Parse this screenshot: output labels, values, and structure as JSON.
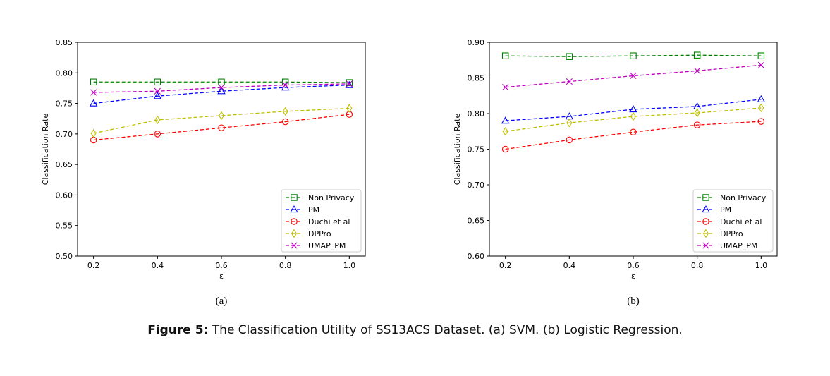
{
  "caption": {
    "label": "Figure 5:",
    "text": "The Classification Utility of SS13ACS Dataset. (a) SVM. (b) Logistic Regression."
  },
  "chart_data": [
    {
      "type": "line",
      "panel": "(a)",
      "xlabel": "ε",
      "ylabel": "Classification Rate",
      "x": [
        0.2,
        0.4,
        0.6,
        0.8,
        1.0
      ],
      "xticks": [
        "0.2",
        "0.4",
        "0.6",
        "0.8",
        "1.0"
      ],
      "ylim": [
        0.5,
        0.85
      ],
      "yticks": [
        "0.50",
        "0.55",
        "0.60",
        "0.65",
        "0.70",
        "0.75",
        "0.80",
        "0.85"
      ],
      "legend": "lower-right",
      "series": [
        {
          "name": "Non Privacy",
          "color": "#008000",
          "marker": "square",
          "values": [
            0.785,
            0.785,
            0.785,
            0.785,
            0.784
          ]
        },
        {
          "name": "PM",
          "color": "#0000ff",
          "marker": "triangle",
          "values": [
            0.75,
            0.762,
            0.77,
            0.776,
            0.78
          ]
        },
        {
          "name": "Duchi et al",
          "color": "#ff0000",
          "marker": "circle",
          "values": [
            0.69,
            0.7,
            0.71,
            0.72,
            0.732
          ]
        },
        {
          "name": "DPPro",
          "color": "#bfbf00",
          "marker": "diamond",
          "values": [
            0.701,
            0.723,
            0.73,
            0.737,
            0.742
          ]
        },
        {
          "name": "UMAP_PM",
          "color": "#bf00bf",
          "marker": "x",
          "values": [
            0.768,
            0.77,
            0.776,
            0.78,
            0.782
          ]
        }
      ]
    },
    {
      "type": "line",
      "panel": "(b)",
      "xlabel": "ε",
      "ylabel": "Classification Rate",
      "x": [
        0.2,
        0.4,
        0.6,
        0.8,
        1.0
      ],
      "xticks": [
        "0.2",
        "0.4",
        "0.6",
        "0.8",
        "1.0"
      ],
      "ylim": [
        0.6,
        0.9
      ],
      "yticks": [
        "0.60",
        "0.65",
        "0.70",
        "0.75",
        "0.80",
        "0.85",
        "0.90"
      ],
      "legend": "lower-right",
      "series": [
        {
          "name": "Non Privacy",
          "color": "#008000",
          "marker": "square",
          "values": [
            0.881,
            0.88,
            0.881,
            0.882,
            0.881
          ]
        },
        {
          "name": "PM",
          "color": "#0000ff",
          "marker": "triangle",
          "values": [
            0.79,
            0.796,
            0.806,
            0.81,
            0.82
          ]
        },
        {
          "name": "Duchi et al",
          "color": "#ff0000",
          "marker": "circle",
          "values": [
            0.75,
            0.763,
            0.774,
            0.784,
            0.789
          ]
        },
        {
          "name": "DPPro",
          "color": "#bfbf00",
          "marker": "diamond",
          "values": [
            0.775,
            0.787,
            0.796,
            0.801,
            0.808
          ]
        },
        {
          "name": "UMAP_PM",
          "color": "#bf00bf",
          "marker": "x",
          "values": [
            0.837,
            0.845,
            0.853,
            0.86,
            0.868
          ]
        }
      ]
    }
  ]
}
